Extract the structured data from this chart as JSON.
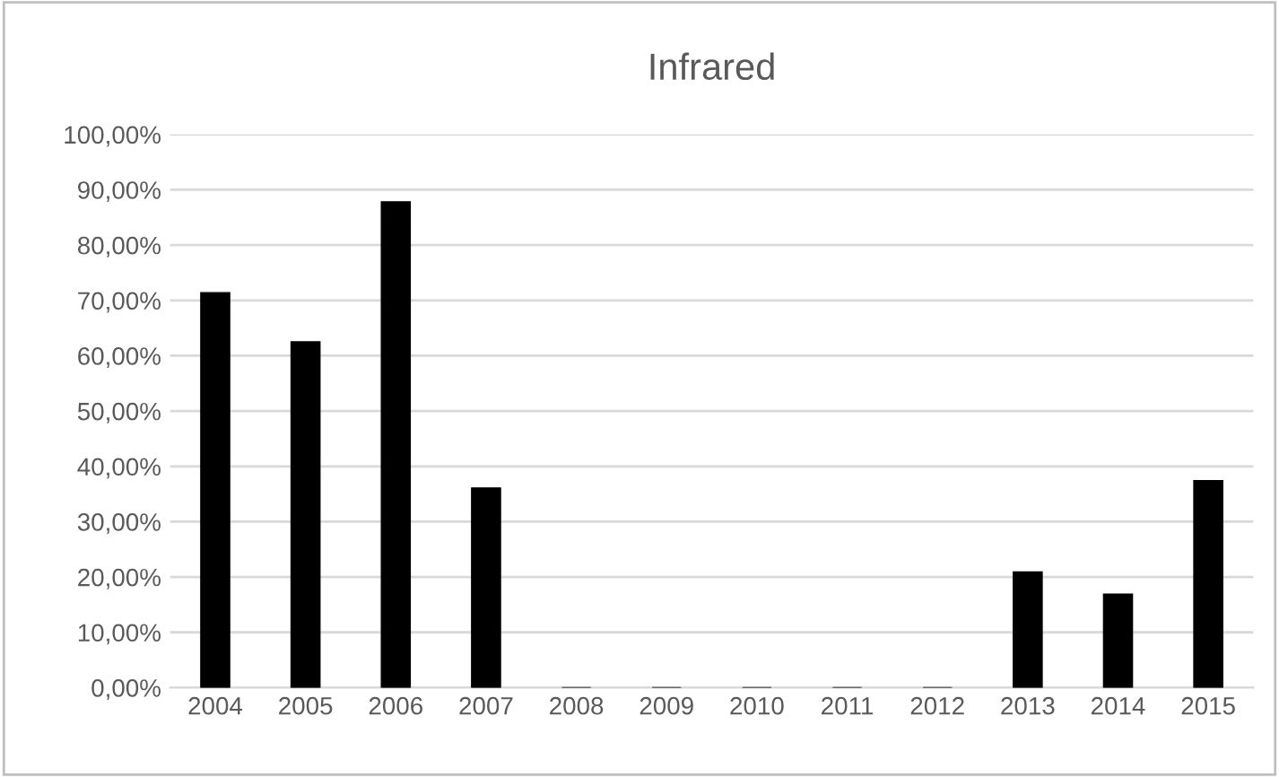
{
  "chart_data": {
    "type": "bar",
    "title": "Infrared",
    "categories": [
      "2004",
      "2005",
      "2006",
      "2007",
      "2008",
      "2009",
      "2010",
      "2011",
      "2012",
      "2013",
      "2014",
      "2015"
    ],
    "values": [
      71.4,
      62.5,
      87.8,
      36.1,
      0,
      0,
      0,
      0,
      0,
      20.9,
      16.9,
      37.4
    ],
    "color": "#000000",
    "ylim": [
      0,
      100
    ],
    "yticks": [
      {
        "value": 0,
        "label": "0,00%"
      },
      {
        "value": 10,
        "label": "10,00%"
      },
      {
        "value": 20,
        "label": "20,00%"
      },
      {
        "value": 30,
        "label": "30,00%"
      },
      {
        "value": 40,
        "label": "40,00%"
      },
      {
        "value": 50,
        "label": "50,00%"
      },
      {
        "value": 60,
        "label": "60,00%"
      },
      {
        "value": 70,
        "label": "70,00%"
      },
      {
        "value": 80,
        "label": "80,00%"
      },
      {
        "value": 90,
        "label": "90,00%"
      },
      {
        "value": 100,
        "label": "100,00%"
      }
    ],
    "grid": "y"
  }
}
